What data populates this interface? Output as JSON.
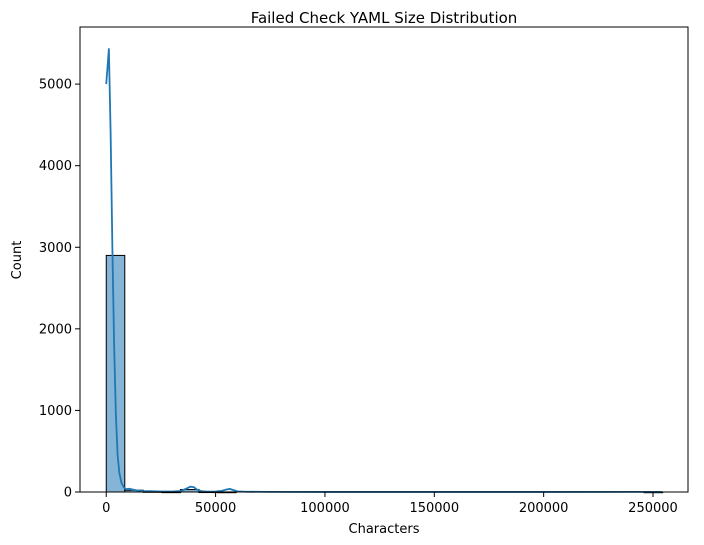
{
  "chart_data": {
    "type": "bar",
    "title": "Failed Check YAML Size Distribution",
    "xlabel": "Characters",
    "ylabel": "Count",
    "xlim": [
      -12000,
      266000
    ],
    "ylim": [
      0,
      5700
    ],
    "xticks": [
      0,
      50000,
      100000,
      150000,
      200000,
      250000
    ],
    "yticks": [
      0,
      1000,
      2000,
      3000,
      4000,
      5000
    ],
    "grid": false,
    "legend": "none",
    "bins": {
      "start": 0,
      "width": 8480,
      "counts": [
        2900,
        22,
        6,
        2,
        30,
        3,
        1,
        0,
        0,
        0,
        0,
        0,
        0,
        0,
        0,
        0,
        0,
        0,
        0,
        0,
        0,
        0,
        0,
        0,
        0,
        0,
        0,
        0,
        0,
        1
      ]
    },
    "kde": {
      "x": [
        0,
        1200,
        2000,
        2800,
        3600,
        4400,
        5200,
        6000,
        7000,
        8000,
        9000,
        10500,
        12000,
        14000,
        17000,
        20000,
        25000,
        30000,
        34000,
        36500,
        38500,
        40000,
        41500,
        43500,
        46000,
        50000,
        53000,
        55000,
        56500,
        58000,
        60000,
        64000,
        75000,
        100000,
        150000,
        200000,
        254000
      ],
      "y": [
        5000,
        5430,
        4400,
        3000,
        1800,
        950,
        450,
        230,
        110,
        60,
        35,
        40,
        30,
        18,
        12,
        10,
        6,
        6,
        12,
        40,
        65,
        60,
        30,
        10,
        5,
        6,
        15,
        30,
        38,
        25,
        8,
        3,
        2,
        1,
        1,
        1,
        2
      ]
    },
    "colors": {
      "bar_fill": "#86b4d6",
      "bar_edge": "#000000",
      "kde_line": "#1f77b4"
    }
  }
}
